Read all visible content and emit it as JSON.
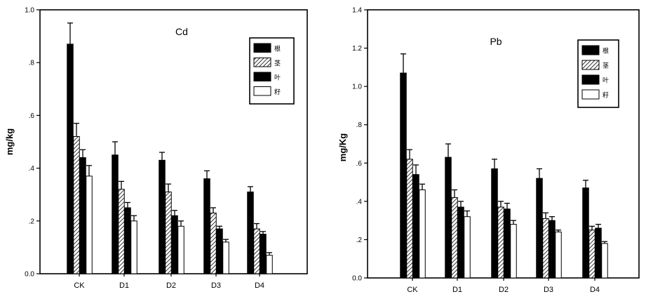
{
  "chart_data": [
    {
      "type": "bar",
      "title": "Cd",
      "ylabel": "mg/kg",
      "xlabel": "",
      "ylim": [
        0,
        1.0
      ],
      "yticks": [
        0.0,
        0.2,
        0.4,
        0.6,
        0.8,
        1.0
      ],
      "ytick_labels": [
        "0.0",
        ".2",
        ".4",
        ".6",
        ".8",
        "1.0"
      ],
      "categories": [
        "CK",
        "D1",
        "D2",
        "D3",
        "D4"
      ],
      "legend_position": "top-right",
      "grid": false,
      "series": [
        {
          "name": "根",
          "pattern": "solid-black",
          "values": [
            0.87,
            0.45,
            0.43,
            0.36,
            0.31
          ],
          "errors": [
            0.08,
            0.05,
            0.03,
            0.03,
            0.02
          ]
        },
        {
          "name": "茎",
          "pattern": "hatched",
          "values": [
            0.52,
            0.32,
            0.31,
            0.23,
            0.17
          ],
          "errors": [
            0.05,
            0.03,
            0.03,
            0.02,
            0.02
          ]
        },
        {
          "name": "叶",
          "pattern": "solid-black",
          "values": [
            0.44,
            0.25,
            0.22,
            0.17,
            0.15
          ],
          "errors": [
            0.03,
            0.02,
            0.02,
            0.01,
            0.01
          ]
        },
        {
          "name": "籽",
          "pattern": "white",
          "values": [
            0.37,
            0.2,
            0.18,
            0.12,
            0.07
          ],
          "errors": [
            0.04,
            0.02,
            0.02,
            0.01,
            0.01
          ]
        }
      ]
    },
    {
      "type": "bar",
      "title": "Pb",
      "ylabel": "mg/Kg",
      "xlabel": "",
      "ylim": [
        0,
        1.4
      ],
      "yticks": [
        0.0,
        0.2,
        0.4,
        0.6,
        0.8,
        1.0,
        1.2,
        1.4
      ],
      "ytick_labels": [
        "0.0",
        ".2",
        ".4",
        ".6",
        ".8",
        "1.0",
        "1.2",
        "1.4"
      ],
      "categories": [
        "CK",
        "D1",
        "D2",
        "D3",
        "D4"
      ],
      "legend_position": "top-right",
      "grid": false,
      "series": [
        {
          "name": "根",
          "pattern": "solid-black",
          "values": [
            1.07,
            0.63,
            0.57,
            0.52,
            0.47
          ],
          "errors": [
            0.1,
            0.07,
            0.05,
            0.05,
            0.04
          ]
        },
        {
          "name": "茎",
          "pattern": "hatched",
          "values": [
            0.62,
            0.42,
            0.37,
            0.31,
            0.25
          ],
          "errors": [
            0.05,
            0.04,
            0.03,
            0.03,
            0.02
          ]
        },
        {
          "name": "叶",
          "pattern": "solid-black",
          "values": [
            0.54,
            0.37,
            0.36,
            0.3,
            0.26
          ],
          "errors": [
            0.05,
            0.03,
            0.03,
            0.02,
            0.02
          ]
        },
        {
          "name": "籽",
          "pattern": "white",
          "values": [
            0.46,
            0.32,
            0.28,
            0.24,
            0.18
          ],
          "errors": [
            0.03,
            0.03,
            0.02,
            0.01,
            0.01
          ]
        }
      ]
    }
  ]
}
